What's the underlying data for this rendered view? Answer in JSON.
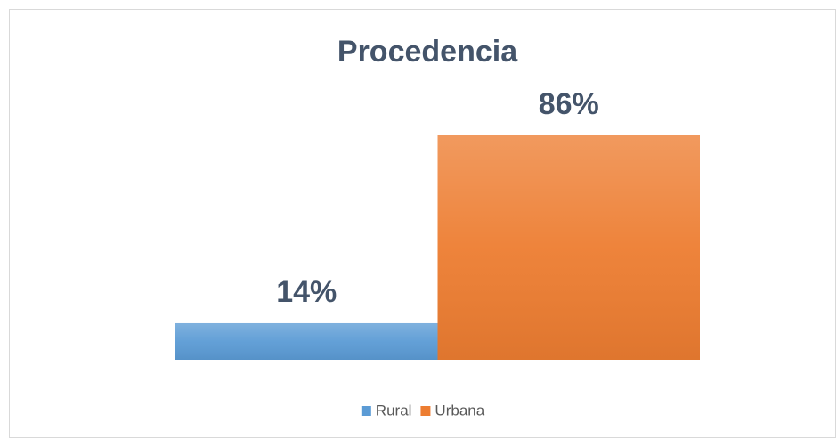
{
  "chart_data": {
    "type": "bar",
    "title": "Procedencia",
    "categories": [
      null
    ],
    "series": [
      {
        "name": "Rural",
        "color": "#5b9bd5",
        "values": [
          14
        ],
        "value_labels": [
          "14%"
        ]
      },
      {
        "name": "Urbana",
        "color": "#ed7d31",
        "values": [
          86
        ],
        "value_labels": [
          "86%"
        ]
      }
    ]
  }
}
